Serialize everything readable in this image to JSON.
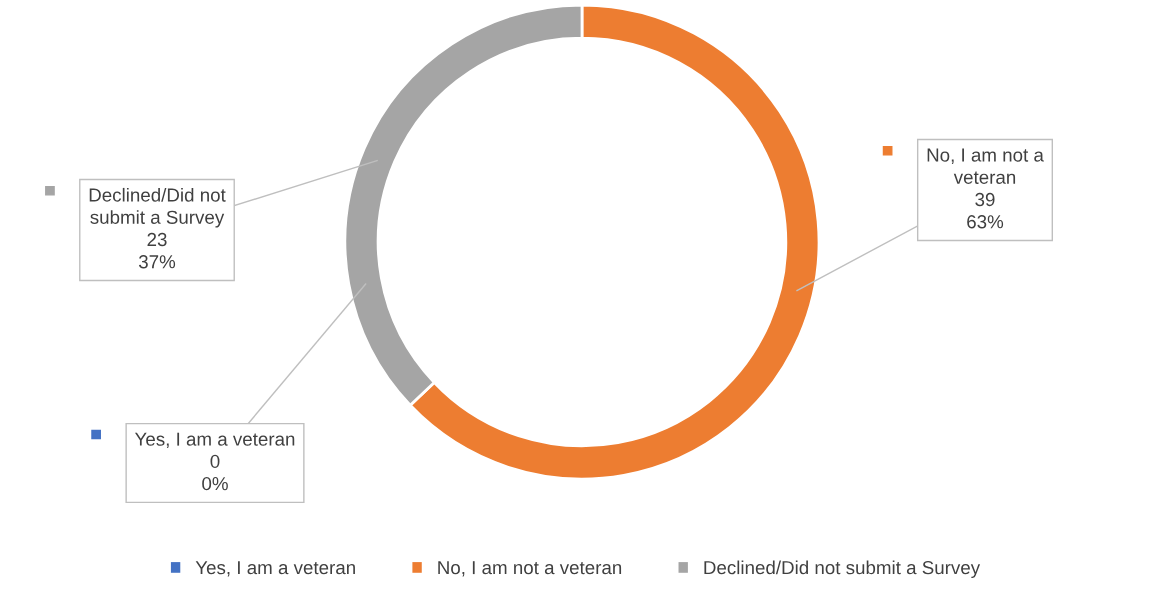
{
  "chart_data": {
    "type": "donut",
    "categories": [
      "Yes, I am a veteran",
      "No, I am not a veteran",
      "Declined/Did not submit a Survey"
    ],
    "values": [
      0,
      39,
      23
    ],
    "colors": [
      "#4472c4",
      "#ed7d31",
      "#a5a5a5"
    ],
    "value_labels": [
      "Yes, I am a veteran\n0\n0%",
      "No, I am not a\nveteran\n39\n63%",
      "Declined/Did not\nsubmit a Survey\n23\n37%"
    ],
    "legend": "bottom"
  }
}
